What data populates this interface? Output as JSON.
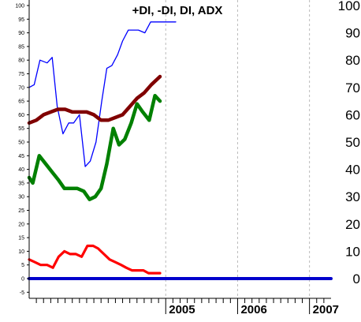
{
  "title": "+DI, -DI, DI, ADX",
  "colors": {
    "plus_di": "#0000ff",
    "minus_di": "#ff0000",
    "di": "#008000",
    "adx": "#800000",
    "zero_line": "#0000cc",
    "year_grid": "#bbbbbb"
  },
  "chart_data": {
    "type": "line",
    "title": "+DI, -DI, DI, ADX",
    "xlabel": "",
    "ylabel": "",
    "ylim": [
      -5,
      100
    ],
    "grid": "vertical dashed lines at year boundaries",
    "x_range": [
      0,
      42
    ],
    "x_ticks": [
      {
        "x": 19,
        "label": "2005"
      },
      {
        "x": 29,
        "label": "2006"
      },
      {
        "x": 39,
        "label": "2007"
      }
    ],
    "y_ticks_left": [
      -5,
      0,
      5,
      10,
      15,
      20,
      25,
      30,
      35,
      40,
      45,
      50,
      55,
      60,
      65,
      70,
      75,
      80,
      85,
      90,
      95,
      100
    ],
    "y_ticks_right": [
      0,
      10,
      20,
      30,
      40,
      50,
      60,
      70,
      80,
      90,
      100
    ],
    "series": [
      {
        "key": "plus_di",
        "color": "#0000ff",
        "width": 1.3,
        "x": [
          0,
          0.7,
          1.5,
          2.5,
          3.2,
          3.9,
          4.7,
          5.5,
          6.2,
          7.0,
          7.8,
          8.5,
          9.3,
          10.1,
          10.8,
          11.5,
          12.3,
          13.0,
          13.8,
          14.5,
          15.2,
          16.1,
          16.9,
          17.6,
          18.5,
          19.0,
          19.7,
          20.4
        ],
        "values": [
          70,
          71,
          80,
          79,
          81,
          63,
          53,
          57,
          57,
          60,
          41,
          43,
          50,
          65,
          77,
          78,
          82,
          87,
          91,
          91,
          91,
          90,
          94,
          94,
          94,
          94,
          94,
          94
        ]
      },
      {
        "key": "minus_di",
        "color": "#ff0000",
        "width": 3.2,
        "x": [
          0,
          0.8,
          1.6,
          2.5,
          3.3,
          4.1,
          4.9,
          5.7,
          6.5,
          7.3,
          8.1,
          8.9,
          9.6,
          10.4,
          11.2,
          12.0,
          12.8,
          13.5,
          14.3,
          15.1,
          15.9,
          16.6,
          17.4,
          18.2
        ],
        "values": [
          7,
          6,
          5,
          5,
          4,
          8,
          10,
          9,
          9,
          8,
          12,
          12,
          11,
          9,
          7,
          6,
          5,
          4,
          3,
          3,
          3,
          2,
          2,
          2
        ]
      },
      {
        "key": "di",
        "color": "#008000",
        "width": 4.5,
        "x": [
          0,
          0.5,
          1.4,
          2.3,
          3.2,
          4.1,
          4.9,
          5.8,
          6.7,
          7.6,
          8.4,
          9.2,
          10.0,
          10.8,
          11.7,
          12.5,
          13.3,
          14.2,
          15.0,
          15.8,
          16.7,
          17.5,
          18.2
        ],
        "values": [
          37,
          35,
          45,
          42,
          39,
          36,
          33,
          33,
          33,
          32,
          29,
          30,
          33,
          42,
          55,
          49,
          51,
          57,
          64,
          61,
          58,
          67,
          65
        ]
      },
      {
        "key": "adx",
        "color": "#800000",
        "width": 4.5,
        "x": [
          0,
          1.0,
          2.0,
          3.0,
          4.0,
          5.0,
          6.0,
          7.0,
          8.0,
          9.0,
          10.0,
          11.0,
          12.0,
          13.0,
          14.0,
          15.0,
          16.0,
          17.0,
          18.2
        ],
        "values": [
          57,
          58,
          60,
          61,
          62,
          62,
          61,
          61,
          61,
          60,
          58,
          58,
          59,
          60,
          63,
          66,
          68,
          71,
          74
        ]
      },
      {
        "key": "zero",
        "color": "#0000cc",
        "width": 4.0,
        "x": [
          0,
          42
        ],
        "values": [
          0,
          0
        ]
      }
    ]
  }
}
